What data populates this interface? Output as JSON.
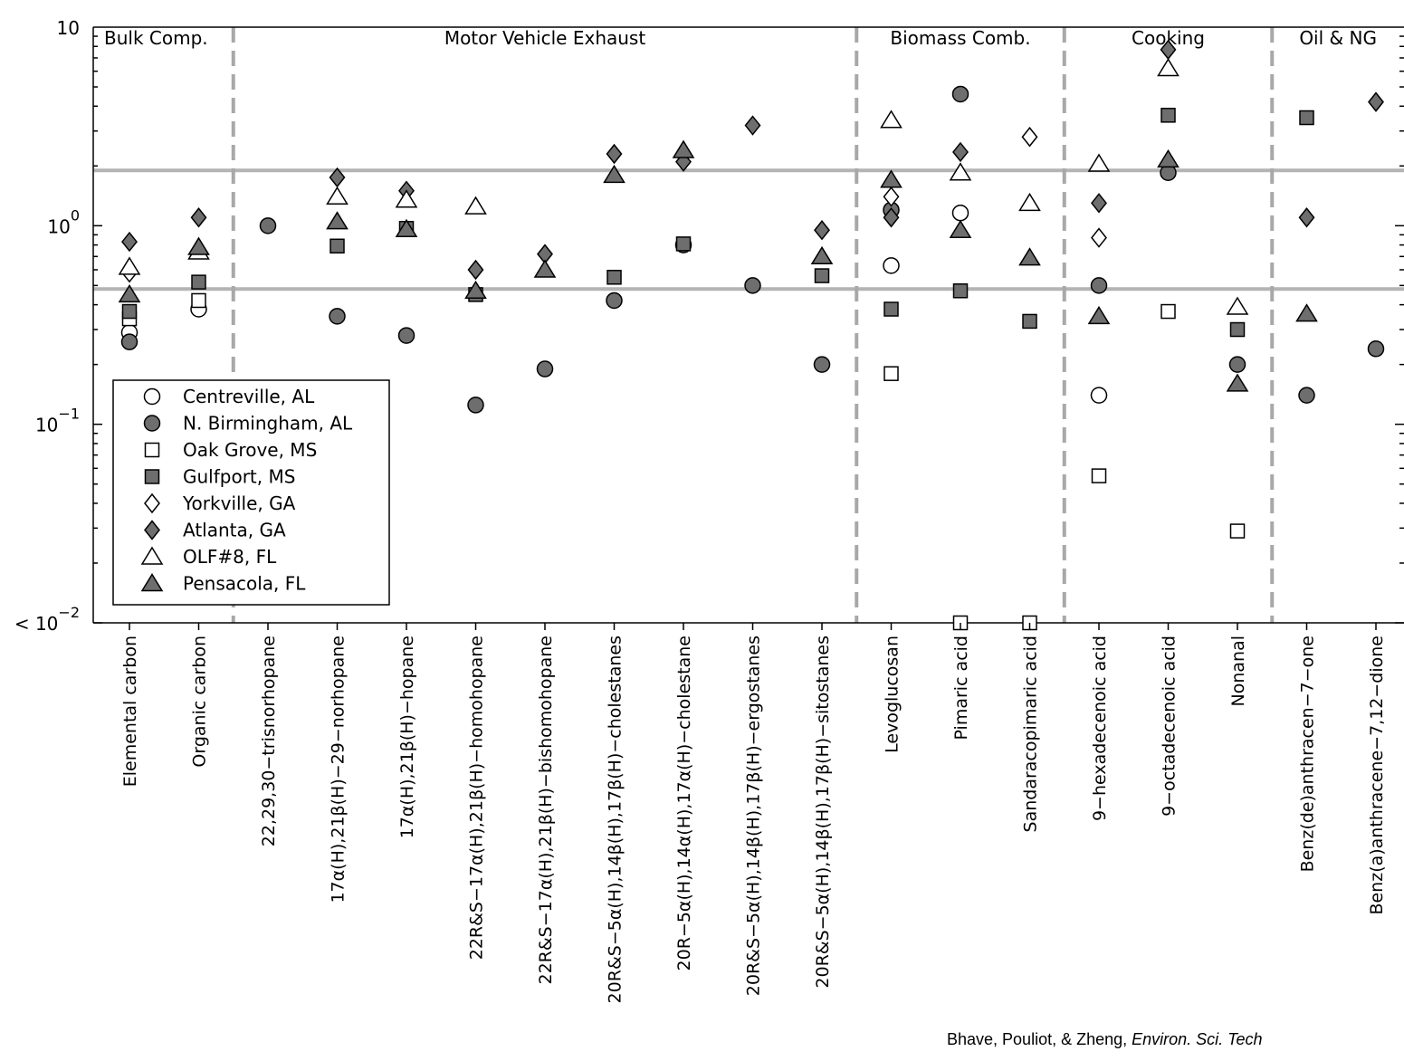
{
  "chart_data": {
    "type": "scatter",
    "y_scale": "log",
    "ylim": [
      0.01,
      10
    ],
    "y_ticks": [
      {
        "value": 10,
        "base": "10",
        "exp": ""
      },
      {
        "value": 1,
        "base": "10",
        "exp": "0"
      },
      {
        "value": 0.1,
        "base": "10",
        "exp": "−1"
      },
      {
        "value": 0.01,
        "base": "< 10",
        "exp": "−2"
      }
    ],
    "reference_lines": [
      1.9,
      0.48
    ],
    "grid": false,
    "legend_position": "lower-left",
    "categories": [
      "Elemental carbon",
      "Organic carbon",
      "22,29,30−trisnorhopane",
      "17α(H),21β(H)−29−norhopane",
      "17α(H),21β(H)−hopane",
      "22R&S−17α(H),21β(H)−homohopane",
      "22R&S−17α(H),21β(H)−bishomohopane",
      "20R&S−5α(H),14β(H),17β(H)−cholestanes",
      "20R−5α(H),14α(H),17α(H)−cholestane",
      "20R&S−5α(H),14β(H),17β(H)−ergostanes",
      "20R&S−5α(H),14β(H),17β(H)−sitostanes",
      "Levoglucosan",
      "Pimaric acid",
      "Sandaracopimaric acid",
      "9−hexadecenoic acid",
      "9−octadecenoic acid",
      "Nonanal",
      "Benz(de)anthracen−7−one",
      "Benz(a)anthracene−7,12−dione"
    ],
    "groups": [
      {
        "label": "Bulk Comp.",
        "start": 0,
        "end": 1
      },
      {
        "label": "Motor Vehicle Exhaust",
        "start": 2,
        "end": 10
      },
      {
        "label": "Biomass Comb.",
        "start": 11,
        "end": 13
      },
      {
        "label": "Cooking",
        "start": 14,
        "end": 16
      },
      {
        "label": "Oil & NG",
        "start": 17,
        "end": 18
      }
    ],
    "series": [
      {
        "name": "Centreville, AL",
        "marker": "circle",
        "filled": false,
        "values": [
          0.29,
          0.38,
          null,
          null,
          null,
          null,
          null,
          null,
          null,
          null,
          null,
          0.63,
          1.16,
          null,
          0.14,
          null,
          null,
          null,
          null
        ]
      },
      {
        "name": "N. Birmingham, AL",
        "marker": "circle",
        "filled": true,
        "values": [
          0.26,
          null,
          1.0,
          0.35,
          0.28,
          0.125,
          0.19,
          0.42,
          0.8,
          0.5,
          0.2,
          1.2,
          4.6,
          null,
          0.5,
          1.85,
          0.2,
          0.14,
          0.24
        ]
      },
      {
        "name": "Oak Grove, MS",
        "marker": "square",
        "filled": false,
        "values": [
          0.34,
          0.42,
          null,
          null,
          null,
          null,
          null,
          null,
          null,
          null,
          null,
          0.18,
          0.01,
          0.01,
          0.055,
          0.37,
          0.029,
          null,
          null
        ]
      },
      {
        "name": "Gulfport, MS",
        "marker": "square",
        "filled": true,
        "values": [
          0.37,
          0.52,
          null,
          0.79,
          0.97,
          0.45,
          null,
          0.55,
          0.81,
          null,
          0.56,
          0.38,
          0.47,
          0.33,
          null,
          3.6,
          0.3,
          3.5,
          null
        ]
      },
      {
        "name": "Yorkville, GA",
        "marker": "diamond",
        "filled": false,
        "values": [
          0.58,
          null,
          null,
          null,
          null,
          null,
          null,
          null,
          null,
          null,
          null,
          1.4,
          null,
          2.8,
          0.87,
          null,
          null,
          null,
          null
        ]
      },
      {
        "name": "Atlanta, GA",
        "marker": "diamond",
        "filled": true,
        "values": [
          0.83,
          1.1,
          null,
          1.75,
          1.5,
          0.6,
          0.72,
          2.3,
          2.1,
          3.2,
          0.95,
          1.1,
          2.35,
          null,
          1.3,
          7.7,
          null,
          1.1,
          4.2
        ]
      },
      {
        "name": "OLF#8, FL",
        "marker": "triangle",
        "filled": false,
        "values": [
          0.62,
          0.74,
          null,
          1.4,
          1.35,
          1.25,
          null,
          null,
          null,
          null,
          null,
          3.4,
          1.85,
          1.3,
          2.05,
          6.2,
          0.39,
          null,
          null
        ]
      },
      {
        "name": "Pensacola, FL",
        "marker": "triangle",
        "filled": true,
        "values": [
          0.45,
          0.78,
          null,
          1.05,
          0.96,
          0.47,
          0.6,
          1.8,
          2.4,
          null,
          0.7,
          1.7,
          0.95,
          0.69,
          0.35,
          2.15,
          0.16,
          0.36,
          null
        ]
      }
    ]
  },
  "citation": {
    "authors": "Bhave, Pouliot, & Zheng,",
    "journal": "Environ. Sci. Tech"
  }
}
